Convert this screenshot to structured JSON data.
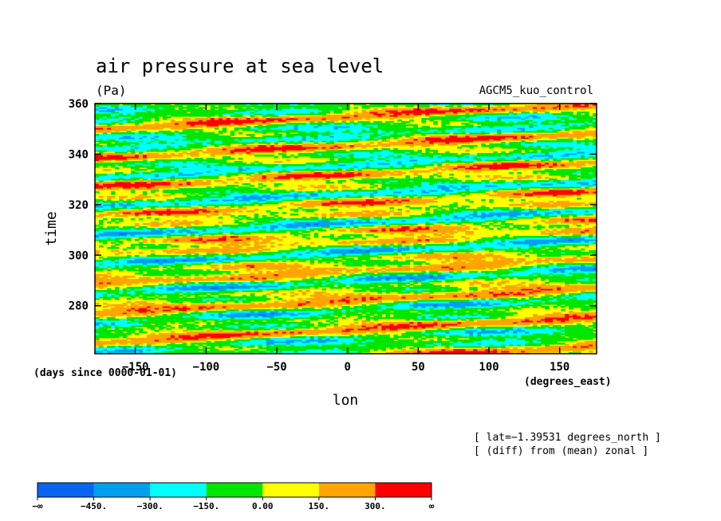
{
  "chart_data": {
    "type": "heatmap",
    "title": "air pressure at sea level",
    "units": "(Pa)",
    "dataset": "AGCM5_kuo_control",
    "xlabel": "lon",
    "ylabel": "time",
    "x_units": "(degrees_east)",
    "y_units": "(days since 0000-01-01)",
    "xlim": [
      -178.6,
      176.1
    ],
    "ylim": [
      261,
      360
    ],
    "x_ticks": [
      -150,
      -100,
      -50,
      0,
      50,
      100,
      150
    ],
    "x_tick_labels": [
      "−150",
      "−100",
      "−50",
      "0",
      "50",
      "100",
      "150"
    ],
    "y_ticks": [
      280,
      300,
      320,
      340,
      360
    ],
    "y_tick_labels": [
      "280",
      "300",
      "320",
      "340",
      "360"
    ],
    "notes": [
      "[ lat=−1.39531 degrees_north ]",
      "[ (diff) from (mean) zonal ]"
    ],
    "colorbar": {
      "levels": [
        -450,
        -300,
        -150,
        0,
        150,
        300
      ],
      "labels": [
        "−∞",
        "−450.",
        "−300.",
        "−150.",
        "0.00",
        "150.",
        "300.",
        "∞"
      ],
      "colors": [
        "#0a64f0",
        "#00a0f0",
        "#00ffff",
        "#00e600",
        "#ffff00",
        "#ffa500",
        "#ff0000"
      ]
    },
    "pattern": {
      "description_of_field": "eastward-propagating zonal anomaly bands",
      "phase_slope_days_per_degree": 0.028,
      "band_period_days": 12
    }
  }
}
